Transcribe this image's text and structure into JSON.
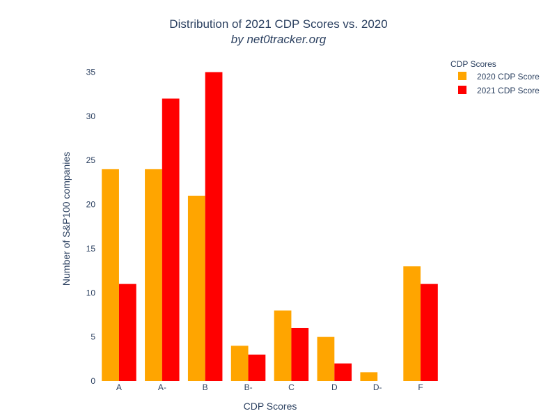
{
  "chart_data": {
    "type": "bar",
    "title": "Distribution of 2021 CDP Scores vs. 2020",
    "subtitle": "by net0tracker.org",
    "xlabel": "CDP Scores",
    "ylabel": "Number of S&P100 companies",
    "categories": [
      "A",
      "A-",
      "B",
      "B-",
      "C",
      "D",
      "D-",
      "F"
    ],
    "series": [
      {
        "name": "2020 CDP Score",
        "color": "#FFA500",
        "values": [
          24,
          24,
          21,
          4,
          8,
          5,
          1,
          13
        ]
      },
      {
        "name": "2021 CDP Score",
        "color": "#FF0000",
        "values": [
          11,
          32,
          35,
          3,
          6,
          2,
          0,
          11
        ]
      }
    ],
    "ylim": [
      0,
      35
    ],
    "yticks": [
      0,
      5,
      10,
      15,
      20,
      25,
      30,
      35
    ],
    "grid": false,
    "legend": {
      "title": "CDP Scores",
      "position": "top-right"
    }
  }
}
